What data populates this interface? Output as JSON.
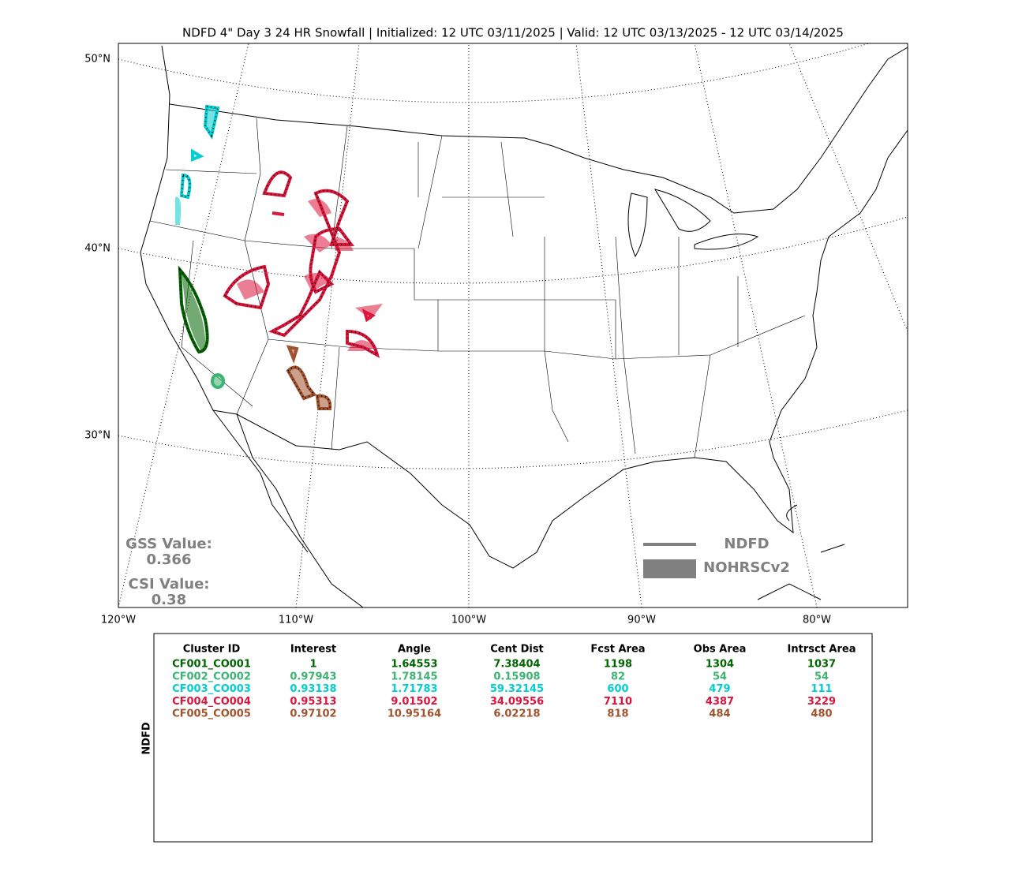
{
  "title": "NDFD 4\" Day 3 24 HR Snowfall | Initialized: 12 UTC 03/11/2025 | Valid: 12 UTC 03/13/2025 - 12 UTC 03/14/2025",
  "map": {
    "lat_labels": [
      "50°N",
      "40°N",
      "30°N"
    ],
    "lon_labels": [
      "120°W",
      "110°W",
      "100°W",
      "90°W",
      "80°W"
    ],
    "gss_label": "GSS Value:",
    "gss_value": "0.366",
    "csi_label": "CSI Value:",
    "csi_value": "0.38",
    "legend": [
      "NDFD",
      "NOHRSCv2"
    ]
  },
  "table": {
    "side_label": "NDFD",
    "columns": [
      "Cluster ID",
      "Interest",
      "Angle",
      "Cent Dist",
      "Fcst Area",
      "Obs Area",
      "Intrsct Area"
    ],
    "row_colors": [
      "#006400",
      "#3cb371",
      "#00ced1",
      "#dc143c",
      "#a0522d"
    ],
    "rows": [
      [
        "CF001_CO001",
        "1",
        "1.64553",
        "7.38404",
        "1198",
        "1304",
        "1037"
      ],
      [
        "CF002_CO002",
        "0.97943",
        "1.78145",
        "0.15908",
        "82",
        "54",
        "54"
      ],
      [
        "CF003_CO003",
        "0.93138",
        "1.71783",
        "59.32145",
        "600",
        "479",
        "111"
      ],
      [
        "CF004_CO004",
        "0.95313",
        "9.01502",
        "34.09556",
        "7110",
        "4387",
        "3229"
      ],
      [
        "CF005_CO005",
        "0.97102",
        "10.95164",
        "6.02218",
        "818",
        "484",
        "480"
      ]
    ]
  }
}
